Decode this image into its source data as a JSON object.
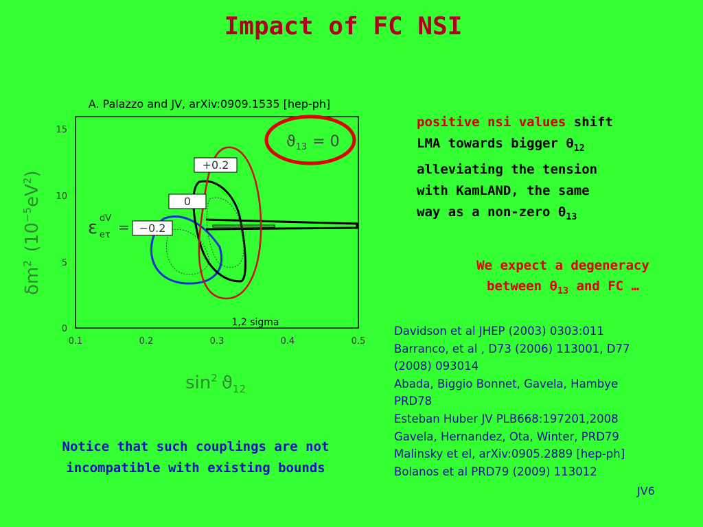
{
  "title": "Impact of FC NSI",
  "plot": {
    "citation": "A. Palazzo and JV, arXiv:0909.1535 [hep-ph]",
    "y_ticks": [
      "0",
      "5",
      "10",
      "15"
    ],
    "x_ticks": [
      "0.1",
      "0.2",
      "0.3",
      "0.4",
      "0.5"
    ],
    "y_label": [
      "δm",
      "2",
      "(10",
      "−5",
      "eV",
      "2",
      ")"
    ],
    "x_label": [
      "sin",
      "2",
      "ϑ",
      "12"
    ],
    "curve_labels": [
      "+0.2",
      "0",
      "−0.2"
    ],
    "epsilon": [
      "ε",
      "dV",
      "eτ",
      "="
    ],
    "theta_label": [
      "ϑ",
      "13",
      "= 0"
    ],
    "sigma": "1,2 sigma"
  },
  "note_right": {
    "highlight": "positive nsi values",
    "lines": [
      [
        "shift"
      ],
      [
        "LMA towards bigger  θ",
        "12"
      ],
      [
        "alleviating the tension"
      ],
      [
        "with KamLAND, the same"
      ],
      [
        "way as a non-zero θ",
        "13"
      ]
    ]
  },
  "degeneracy": [
    [
      "We expect a degeneracy"
    ],
    [
      "between θ",
      "13",
      " and FC …"
    ]
  ],
  "references": [
    "Davidson et al JHEP (2003) 0303:011",
    "Barranco, et al , D73 (2006) 113001, D77",
    "(2008) 093014",
    "Abada, Biggio Bonnet, Gavela, Hambye",
    "PRD78",
    "Esteban Huber JV PLB668:197201,2008",
    "Gavela, Hernandez, Ota, Winter, PRD79",
    "Malinsky et el, arXiv:0905.2889 [hep-ph]",
    "Bolanos et al PRD79 (2009) 113012"
  ],
  "bottom_note": [
    "Notice that such couplings are not",
    "incompatible with existing bounds"
  ],
  "footer": "JV6"
}
